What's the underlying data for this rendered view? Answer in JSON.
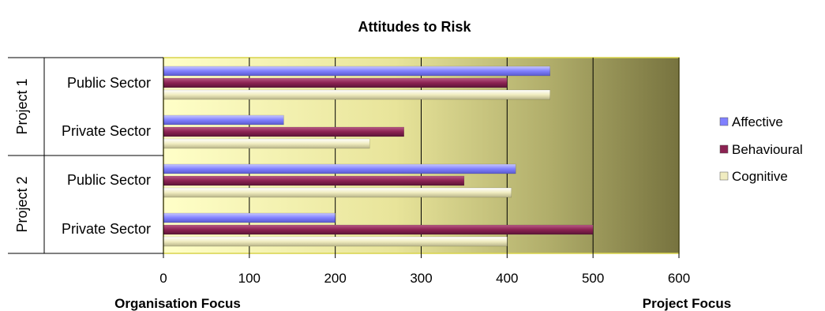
{
  "chart_data": {
    "type": "bar",
    "orientation": "horizontal",
    "title": "Attitudes to Risk",
    "groups": [
      {
        "name": "Project 1",
        "categories": [
          "Public Sector",
          "Private Sector"
        ]
      },
      {
        "name": "Project 2",
        "categories": [
          "Public Sector",
          "Private Sector"
        ]
      }
    ],
    "series": [
      {
        "name": "Affective",
        "color": "#8080ff",
        "values": [
          450,
          140,
          410,
          200
        ]
      },
      {
        "name": "Behavioural",
        "color": "#8b2252",
        "values": [
          400,
          280,
          350,
          500
        ]
      },
      {
        "name": "Cognitive",
        "color": "#f0ecc0",
        "values": [
          450,
          240,
          405,
          400
        ]
      }
    ],
    "xlim": [
      0,
      600
    ],
    "xticks": [
      "0",
      "100",
      "200",
      "300",
      "400",
      "500",
      "600"
    ],
    "x_left_label": "Organisation Focus",
    "x_right_label": "Project Focus",
    "grid": true,
    "legend_position": "right",
    "background_gradient": [
      "#ffffc8",
      "#e8e49a",
      "#b0ad6a",
      "#77733f"
    ]
  }
}
